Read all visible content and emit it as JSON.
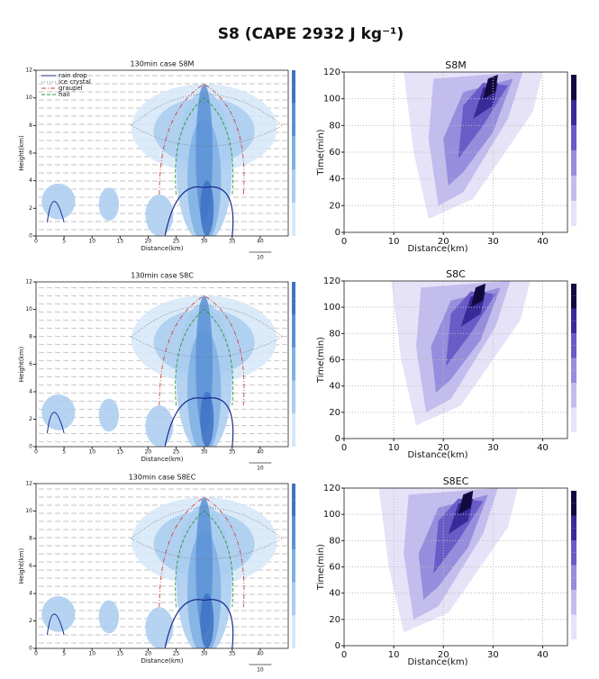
{
  "figure": {
    "title": "S8 (CAPE 2932 J kg⁻¹)",
    "legend": [
      "rain drop",
      "ice crystal",
      "graupel",
      "hail"
    ],
    "panels": [
      {
        "title": "130min case S8M",
        "xlabel": "Distance(km)",
        "ylabel": "Height(km)",
        "xlim": [
          0,
          45
        ],
        "ylim": [
          0,
          12
        ],
        "xticks": [
          0,
          5,
          10,
          15,
          20,
          25,
          30,
          35,
          40
        ],
        "yticks": [
          0,
          2,
          4,
          6,
          8,
          10,
          12
        ],
        "wind_scale": "10"
      },
      {
        "title": "S8M",
        "xlabel": "Distance(km)",
        "ylabel": "Time(min)",
        "xlim": [
          0,
          45
        ],
        "ylim": [
          0,
          120
        ],
        "xticks": [
          0,
          10,
          20,
          30,
          40
        ],
        "yticks": [
          0,
          20,
          40,
          60,
          80,
          100,
          120
        ]
      },
      {
        "title": "130min case S8C",
        "xlabel": "Distance(km)",
        "ylabel": "Height(km)",
        "xlim": [
          0,
          45
        ],
        "ylim": [
          0,
          12
        ],
        "xticks": [
          0,
          5,
          10,
          15,
          20,
          25,
          30,
          35,
          40
        ],
        "yticks": [
          0,
          2,
          4,
          6,
          8,
          10,
          12
        ],
        "wind_scale": "10"
      },
      {
        "title": "S8C",
        "xlabel": "Distance(km)",
        "ylabel": "Time(min)",
        "xlim": [
          0,
          45
        ],
        "ylim": [
          0,
          120
        ],
        "xticks": [
          0,
          10,
          20,
          30,
          40
        ],
        "yticks": [
          0,
          20,
          40,
          60,
          80,
          100,
          120
        ]
      },
      {
        "title": "130min case S8EC",
        "xlabel": "Distance(km)",
        "ylabel": "Height(km)",
        "xlim": [
          0,
          45
        ],
        "ylim": [
          0,
          12
        ],
        "xticks": [
          0,
          5,
          10,
          15,
          20,
          25,
          30,
          35,
          40
        ],
        "yticks": [
          0,
          2,
          4,
          6,
          8,
          10,
          12
        ],
        "wind_scale": "10"
      },
      {
        "title": "S8EC",
        "xlabel": "Distance(km)",
        "ylabel": "Time(min)",
        "xlim": [
          0,
          45
        ],
        "ylim": [
          0,
          120
        ],
        "xticks": [
          0,
          10,
          20,
          30,
          40
        ],
        "yticks": [
          0,
          20,
          40,
          60,
          80,
          100,
          120
        ]
      }
    ]
  }
}
